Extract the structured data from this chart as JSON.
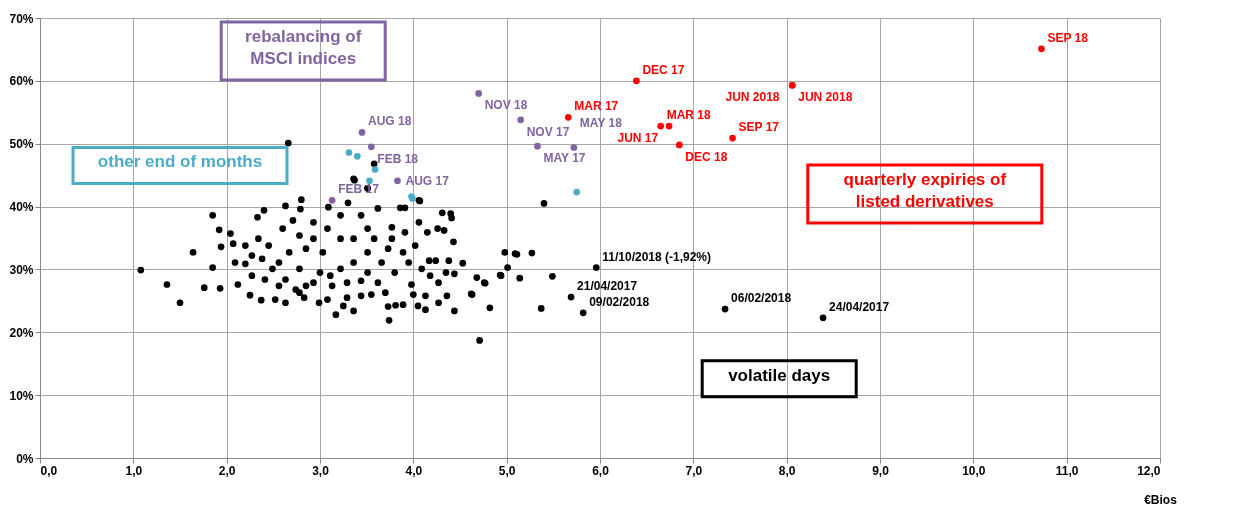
{
  "chart_data": {
    "type": "scatter",
    "xlabel": "€Bios",
    "xlim": [
      0,
      12
    ],
    "ylim": [
      0,
      70
    ],
    "xticks": [
      {
        "value": 0,
        "label": "0,0"
      },
      {
        "value": 1,
        "label": "1,0"
      },
      {
        "value": 2,
        "label": "2,0"
      },
      {
        "value": 3,
        "label": "3,0"
      },
      {
        "value": 4,
        "label": "4,0"
      },
      {
        "value": 5,
        "label": "5,0"
      },
      {
        "value": 6,
        "label": "6,0"
      },
      {
        "value": 7,
        "label": "7,0"
      },
      {
        "value": 8,
        "label": "8,0"
      },
      {
        "value": 9,
        "label": "9,0"
      },
      {
        "value": 10,
        "label": "10,0"
      },
      {
        "value": 11,
        "label": "11,0"
      },
      {
        "value": 12,
        "label": "12,0"
      }
    ],
    "yticks": [
      {
        "value": 0,
        "label": "0%"
      },
      {
        "value": 10,
        "label": "10%"
      },
      {
        "value": 20,
        "label": "20%"
      },
      {
        "value": 30,
        "label": "30%"
      },
      {
        "value": 40,
        "label": "40%"
      },
      {
        "value": 50,
        "label": "50%"
      },
      {
        "value": 60,
        "label": "60%"
      },
      {
        "value": 70,
        "label": "70%"
      }
    ],
    "grid": true,
    "marker": "circle",
    "series": [
      {
        "color": "#000000",
        "x": [
          1.08,
          1.36,
          1.5,
          1.64,
          1.85,
          1.85,
          1.76,
          1.93,
          1.92,
          1.94,
          2.04,
          2.12,
          2.25,
          2.37,
          2.52,
          2.33,
          2.4,
          2.63,
          2.8,
          2.79,
          2.63,
          2.83,
          2.99,
          3.17,
          3.36,
          3.25,
          3.09,
          3.3,
          3.51,
          3.36,
          3.62,
          3.86,
          3.91,
          4.06,
          4.31,
          4.4,
          4.41,
          4.06,
          4.15,
          4.26,
          4.33,
          4.43,
          4.53,
          4.44,
          4.44,
          4.98,
          5.11,
          5.27,
          5.01,
          4.94,
          5.14,
          4.68,
          4.77,
          4.63,
          4.82,
          4.71,
          3.74,
          3.73,
          3.81,
          3.89,
          4.05,
          4.13,
          4.27,
          4.36,
          3.7,
          3.98,
          4.18,
          4.24,
          4.38,
          4.17,
          3.95,
          3.89,
          3.77,
          3.77,
          3.91,
          4.02,
          3.62,
          3.44,
          3.44,
          3.29,
          3.13,
          2.93,
          2.74,
          2.56,
          2.41,
          2.27,
          2.2,
          2.09,
          2.07,
          2.2,
          2.34,
          2.45,
          2.6,
          2.71,
          2.93,
          3.08,
          3.22,
          3.44,
          3.51,
          3.36,
          3.22,
          3.03,
          2.85,
          2.67,
          2.56,
          2.78,
          3.0,
          3.22,
          3.36,
          3.51,
          3.66,
          3.73,
          3.58,
          2.93,
          2.78,
          2.38,
          2.27,
          2.49,
          2.63,
          2.85,
          3.11,
          3.29,
          3.51,
          3.8,
          4.09,
          4.35,
          4.27,
          4.13,
          4.0,
          3.55,
          3.08,
          2.78,
          2.66,
          3.58,
          3.37,
          3.51,
          5.4,
          4.07,
          5.09,
          5.49,
          4.93,
          4.76,
          4.62,
          5.37
        ],
        "values": [
          29.9,
          27.6,
          24.7,
          32.7,
          38.6,
          30.3,
          27.1,
          27.0,
          36.3,
          33.6,
          35.7,
          27.6,
          25.9,
          25.1,
          25.2,
          38.3,
          39.4,
          40.1,
          41.1,
          39.6,
          24.7,
          25.5,
          24.7,
          22.8,
          23.4,
          24.2,
          39.9,
          40.6,
          42.9,
          44.4,
          39.7,
          39.8,
          39.8,
          41.0,
          39.0,
          38.9,
          38.2,
          37.5,
          35.9,
          36.5,
          36.2,
          34.4,
          31.0,
          29.3,
          23.4,
          32.7,
          32.4,
          32.6,
          30.3,
          29.0,
          28.6,
          28.7,
          27.8,
          26.0,
          23.9,
          18.7,
          21.9,
          24.1,
          24.3,
          24.4,
          24.2,
          23.6,
          24.7,
          25.8,
          26.3,
          27.6,
          29.0,
          31.4,
          31.4,
          31.4,
          31.1,
          32.7,
          34.9,
          36.7,
          35.9,
          33.8,
          27.9,
          28.2,
          25.8,
          25.5,
          27.4,
          27.9,
          26.8,
          27.4,
          28.4,
          29.0,
          30.9,
          31.1,
          34.1,
          33.8,
          34.9,
          33.8,
          36.5,
          37.8,
          37.5,
          36.5,
          38.6,
          38.6,
          36.5,
          34.9,
          34.9,
          32.7,
          33.3,
          32.7,
          31.1,
          30.1,
          29.5,
          30.1,
          31.1,
          32.7,
          31.1,
          33.3,
          34.9,
          34.9,
          35.4,
          31.7,
          32.2,
          30.1,
          28.4,
          27.4,
          29.0,
          27.9,
          29.5,
          29.5,
          30.1,
          29.5,
          27.9,
          25.8,
          26.0,
          26.0,
          25.2,
          26.3,
          50.1,
          46.8,
          44.2,
          42.9,
          40.5,
          40.9,
          32.5,
          28.9,
          29.1,
          27.9,
          26.1,
          23.8
        ]
      },
      {
        "color": "#000000",
        "x": [
          5.96,
          5.69,
          5.82,
          7.34,
          8.39
        ],
        "values": [
          30.3,
          25.6,
          23.1,
          23.7,
          22.3
        ],
        "value_labels": [
          "11/10/2018  (-1,92%)",
          "21/04/2017",
          "09/02/2018",
          "06/02/2018",
          "24/04/2017"
        ]
      },
      {
        "color": "#8064a2",
        "x": [
          4.7,
          5.15,
          3.45,
          3.55,
          3.83,
          3.13,
          5.33,
          5.72
        ],
        "values": [
          58.0,
          53.8,
          51.8,
          49.5,
          44.1,
          41.0,
          49.6,
          49.4
        ],
        "value_labels": [
          "NOV 18",
          "NOV 17",
          "AUG 18",
          "FEB 18",
          "AUG 17",
          "FEB 17",
          "MAY 17",
          "MAY 18"
        ]
      },
      {
        "color": "#4bacc6",
        "x": [
          3.31,
          3.4,
          3.59,
          3.53,
          3.98,
          3.99,
          5.75
        ],
        "values": [
          48.6,
          48.0,
          45.9,
          44.1,
          41.6,
          41.3,
          42.3
        ]
      },
      {
        "color": "#ff0000",
        "x": [
          6.39,
          5.66,
          6.65,
          6.74,
          7.42,
          6.85,
          8.06,
          8.06,
          10.73
        ],
        "values": [
          60.0,
          54.2,
          52.8,
          52.8,
          50.9,
          49.8,
          59.3,
          59.3,
          65.1
        ],
        "value_labels": [
          "DEC 17",
          "MAR 17",
          "MAR 18",
          "JUN 17",
          "SEP 17",
          "DEC 18",
          "JUN 2018",
          "JUN 2018",
          "SEP 18"
        ]
      }
    ],
    "annotations": [
      "volatile days",
      "rebalancing of MSCI indices",
      "other end of months",
      "quarterly expiries of listed derivatives"
    ]
  }
}
